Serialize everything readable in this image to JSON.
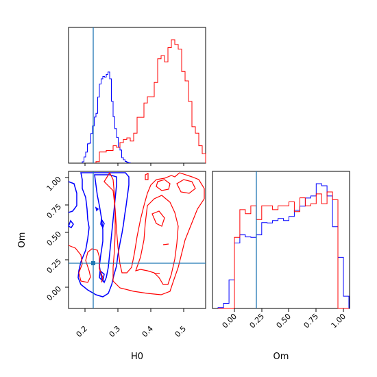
{
  "chart_data": {
    "type": "corner",
    "params": [
      "H0",
      "Om"
    ],
    "truth": {
      "H0": 0.225,
      "Om": 0.21
    },
    "truth_color": "#1f77b4",
    "series": [
      {
        "color": "#0000ff",
        "H0_hist": {
          "bins": [
            0.19,
            0.195,
            0.2,
            0.205,
            0.21,
            0.215,
            0.22,
            0.225,
            0.23,
            0.235,
            0.24,
            0.245,
            0.25,
            0.255,
            0.26,
            0.265,
            0.27,
            0.275,
            0.28,
            0.285,
            0.29,
            0.295,
            0.3,
            0.305,
            0.31,
            0.315,
            0.32,
            0.325,
            0.33
          ],
          "counts": [
            0.4,
            1.8,
            3.2,
            5.6,
            5.8,
            8.6,
            10.8,
            13.4,
            14.5,
            19.2,
            23.0,
            24.5,
            25.2,
            25.0,
            25.8,
            26.5,
            24.5,
            18.0,
            13.5,
            10.0,
            7.5,
            4.6,
            3.8,
            1.6,
            1.0,
            0.5,
            0.2,
            0.1
          ]
        },
        "Om_hist": {
          "bins": [
            -0.15,
            -0.1,
            -0.05,
            0.0,
            0.05,
            0.1,
            0.15,
            0.2,
            0.25,
            0.3,
            0.35,
            0.4,
            0.45,
            0.5,
            0.55,
            0.6,
            0.65,
            0.7,
            0.75,
            0.8,
            0.85,
            0.9,
            0.95,
            1.0,
            1.05
          ],
          "counts": [
            0.4,
            2.5,
            14.0,
            32.0,
            36.0,
            35.0,
            34.8,
            36.0,
            42.0,
            41.8,
            43.0,
            44.0,
            43.0,
            45.0,
            48.0,
            50.0,
            54.0,
            55.0,
            61.0,
            60.0,
            55.0,
            40.0,
            25.0,
            6.0
          ]
        }
      },
      {
        "color": "#ff0000",
        "H0_hist": {
          "bins": [
            0.23,
            0.24,
            0.25,
            0.26,
            0.27,
            0.28,
            0.29,
            0.3,
            0.31,
            0.32,
            0.33,
            0.34,
            0.35,
            0.36,
            0.37,
            0.38,
            0.39,
            0.4,
            0.41,
            0.42,
            0.43,
            0.44,
            0.45,
            0.46,
            0.47,
            0.48,
            0.49,
            0.5,
            0.51,
            0.52,
            0.53,
            0.54,
            0.55
          ],
          "counts": [
            1,
            7,
            7,
            8,
            8,
            11,
            10,
            13,
            15,
            16,
            14,
            19,
            29,
            29,
            38,
            42,
            42,
            51,
            66,
            68,
            64,
            73,
            78,
            75,
            72,
            58,
            52,
            39,
            23,
            19,
            11,
            6
          ]
        },
        "Om_hist": {
          "bins": [
            -0.15,
            -0.1,
            -0.05,
            0.0,
            0.05,
            0.1,
            0.15,
            0.2,
            0.25,
            0.3,
            0.35,
            0.4,
            0.45,
            0.5,
            0.55,
            0.6,
            0.65,
            0.7,
            0.75,
            0.8,
            0.85,
            0.9,
            0.95,
            1.0,
            1.05
          ],
          "counts": [
            0,
            0,
            0,
            36.0,
            50.0,
            48.0,
            52.0,
            45.0,
            52.0,
            52.0,
            50.0,
            52.0,
            52.0,
            54.0,
            49.0,
            56.0,
            52.0,
            53.0,
            58.0,
            53.0,
            59.0,
            55.0,
            0,
            0
          ]
        }
      }
    ],
    "H0_range": [
      0.15,
      0.55
    ],
    "Om_range": [
      -0.18,
      1.05
    ],
    "H0_ticks": [
      "0.2",
      "0.3",
      "0.4",
      "0.5"
    ],
    "Om_ticks_y": [
      "1.00",
      "0.75",
      "0.50",
      "0.25",
      "0.00"
    ],
    "Om_ticks_x": [
      "0.00",
      "0.25",
      "0.50",
      "0.75",
      "1.00"
    ],
    "xlabel_h0": "H0",
    "ylabel_om": "Om",
    "xlabel_om": "Om"
  }
}
